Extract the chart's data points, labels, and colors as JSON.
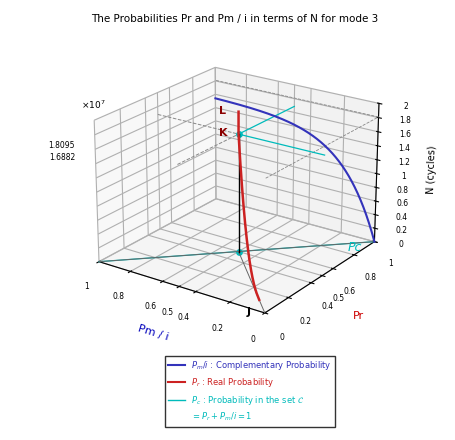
{
  "title": "The Probabilities Pr and Pm / i in terms of N for mode 3",
  "xlabel": "Pm / i",
  "ylabel": "Pr",
  "zlabel": "N (cycles)",
  "xlabel_color": "#0000BB",
  "ylabel_color": "#CC0000",
  "zlabel_color": "black",
  "N_max": 20000000.0,
  "N_K": 16882000.0,
  "N_L": 20000000.0,
  "N_18095": 18095000.0,
  "Pr_K": 0.5,
  "Pmi_K": 0.5,
  "J_Pr": 0.1,
  "J_Pmi": 0.1,
  "blue_line_color": "#3333BB",
  "red_line_color": "#CC2222",
  "cyan_line_color": "#00BBBB",
  "dashed_line_color": "#888888",
  "black_color": "#000000",
  "gray_color": "#666666",
  "background_color": "white",
  "elev": 22,
  "azim": -55,
  "blue_k_param": 5.0,
  "blue_N_plateau": 15500000.0,
  "red_curve_k": 8.0
}
